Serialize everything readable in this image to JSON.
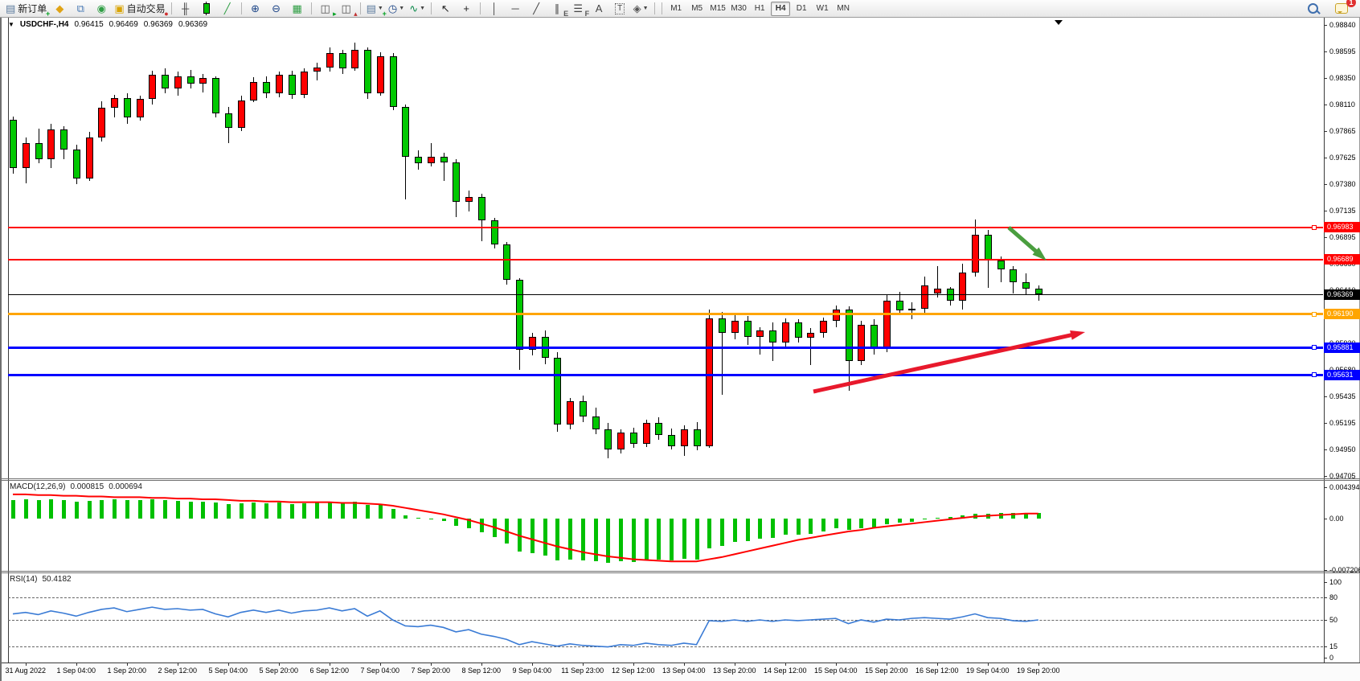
{
  "toolbar": {
    "new_order_label": "新订单",
    "auto_trading_label": "自动交易",
    "buttons": [
      {
        "name": "new-order-button",
        "base": "▤",
        "base_color": "#5b7a9d",
        "overlay": "+",
        "overlay_color": "#00a020",
        "label": "新订单"
      },
      {
        "name": "market-watch-button",
        "base": "◆",
        "base_color": "#e0a315"
      },
      {
        "name": "chart-window-button",
        "base": "⧉",
        "base_color": "#4a7ab5"
      },
      {
        "name": "signal-button",
        "base": "◉",
        "base_color": "#2f9e44"
      },
      {
        "name": "auto-trading-button",
        "base": "▣",
        "base_color": "#d9a406",
        "overlay": "●",
        "overlay_color": "#d03030",
        "label": "自动交易"
      },
      {
        "sep": true
      },
      {
        "name": "bar-chart-button",
        "base": "╫",
        "base_color": "#444444"
      },
      {
        "name": "candlestick-chart-button",
        "candle": true
      },
      {
        "name": "line-chart-button",
        "base": "╱",
        "base_color": "#2f9e44"
      },
      {
        "sep": true
      },
      {
        "name": "zoom-in-button",
        "base": "⊕",
        "base_color": "#1c4587"
      },
      {
        "name": "zoom-out-button",
        "base": "⊖",
        "base_color": "#1c4587"
      },
      {
        "name": "tile-windows-button",
        "base": "▦",
        "base_color": "#2f9e44"
      },
      {
        "sep": true
      },
      {
        "name": "indicators-button",
        "base": "◫",
        "base_color": "#555555",
        "overlay": "▸",
        "overlay_color": "#00a020"
      },
      {
        "name": "indicator-window-button",
        "base": "◫",
        "base_color": "#555555",
        "overlay": "▴",
        "overlay_color": "#c03030"
      },
      {
        "sep": true
      },
      {
        "name": "add-indicator-button",
        "base": "▤",
        "base_color": "#5b7a9d",
        "overlay": "+",
        "overlay_color": "#00a020",
        "dropdown": true
      },
      {
        "name": "periods-button",
        "base": "◷",
        "base_color": "#1c4587",
        "dropdown": true
      },
      {
        "name": "template-button",
        "base": "∿",
        "base_color": "#0a8a4a",
        "dropdown": true
      },
      {
        "sep": true
      },
      {
        "name": "cursor-button",
        "base": "↖",
        "base_color": "#222222"
      },
      {
        "name": "crosshair-button",
        "base": "+",
        "base_color": "#222222"
      },
      {
        "sep": true
      },
      {
        "name": "vertical-line-button",
        "base": "│",
        "base_color": "#444444"
      },
      {
        "name": "horizontal-line-button",
        "base": "─",
        "base_color": "#444444"
      },
      {
        "name": "trendline-button",
        "base": "╱",
        "base_color": "#444444"
      },
      {
        "name": "channel-button",
        "base": "∥",
        "base_color": "#444444",
        "overlay": "E",
        "overlay_color": "#555555"
      },
      {
        "name": "fibonacci-button",
        "base": "☰",
        "base_color": "#444444",
        "overlay": "F",
        "overlay_color": "#555555"
      },
      {
        "name": "text-button",
        "base": "A",
        "base_color": "#444444"
      },
      {
        "name": "label-button",
        "base": "T",
        "base_color": "#444444",
        "boxed": true
      },
      {
        "name": "arrows-button",
        "base": "◈",
        "base_color": "#555555",
        "dropdown": true
      },
      {
        "sep": true
      }
    ],
    "timeframes": [
      "M1",
      "M5",
      "M15",
      "M30",
      "H1",
      "H4",
      "D1",
      "W1",
      "MN"
    ],
    "active_timeframe": "H4",
    "notification_badge": "1"
  },
  "chart_header": {
    "symbol": "USDCHF-,H4",
    "open": "0.96415",
    "high": "0.96469",
    "low": "0.96369",
    "close": "0.96369"
  },
  "indicators": {
    "macd": {
      "label": "MACD(12,26,9)",
      "value_main": "0.000815",
      "value_signal": "0.000694"
    },
    "rsi": {
      "label": "RSI(14)",
      "value": "50.4182"
    }
  },
  "chart_data": {
    "type": "candlestick",
    "symbol": "USDCHF",
    "timeframe": "H4",
    "style": {
      "up_color": "#ff0000",
      "down_color": "#00c800",
      "wick_color": "#000000",
      "macd_hist_color": "#00c000",
      "macd_signal_color": "#ff0000",
      "rsi_color": "#3a7bd5",
      "line_red": "#ff0000",
      "line_orange": "#ffa500",
      "line_blue": "#0000ff",
      "bid_line": "#000000"
    },
    "price_axis": {
      "ticks": [
        0.9884,
        0.98595,
        0.9835,
        0.9811,
        0.97865,
        0.97625,
        0.9738,
        0.97135,
        0.96895,
        0.9665,
        0.9641,
        0.96165,
        0.9592,
        0.9568,
        0.95435,
        0.95195,
        0.9495,
        0.94705
      ],
      "boxed_labels": [
        {
          "label": "0.96983",
          "price": 0.96983,
          "color": "#ff0000"
        },
        {
          "label": "0.96689",
          "price": 0.96689,
          "color": "#ff0000"
        },
        {
          "label": "0.96369",
          "price": 0.96369,
          "color": "#000000"
        },
        {
          "label": "0.96190",
          "price": 0.9619,
          "color": "#ffa500"
        },
        {
          "label": "0.95881",
          "price": 0.95881,
          "color": "#0000ff"
        },
        {
          "label": "0.95631",
          "price": 0.95631,
          "color": "#0000ff"
        }
      ]
    },
    "time_labels": [
      "31 Aug 2022",
      "1 Sep 04:00",
      "1 Sep 20:00",
      "2 Sep 12:00",
      "5 Sep 04:00",
      "5 Sep 20:00",
      "6 Sep 12:00",
      "7 Sep 04:00",
      "7 Sep 20:00",
      "8 Sep 12:00",
      "9 Sep 04:00",
      "11 Sep 23:00",
      "12 Sep 12:00",
      "13 Sep 04:00",
      "13 Sep 20:00",
      "14 Sep 12:00",
      "15 Sep 04:00",
      "15 Sep 20:00",
      "16 Sep 12:00",
      "19 Sep 04:00",
      "19 Sep 20:00"
    ],
    "horizontal_lines": [
      {
        "name": "resistance-line-1",
        "price": 0.96983,
        "color": "#ff0000",
        "width": 2,
        "handle": true
      },
      {
        "name": "resistance-line-2",
        "price": 0.96689,
        "color": "#ff0000",
        "width": 2,
        "handle": false
      },
      {
        "name": "bid-price-line",
        "price": 0.96369,
        "color": "#000000",
        "width": 1,
        "handle": false
      },
      {
        "name": "pivot-line-orange",
        "price": 0.9619,
        "color": "#ffa500",
        "width": 3,
        "handle": true
      },
      {
        "name": "support-line-1",
        "price": 0.95881,
        "color": "#0000ff",
        "width": 3,
        "handle": true
      },
      {
        "name": "support-line-2",
        "price": 0.95631,
        "color": "#0000ff",
        "width": 3,
        "handle": true
      }
    ],
    "arrows": [
      {
        "name": "green-down-arrow",
        "from": [
          1253,
          283
        ],
        "to": [
          1300,
          324
        ],
        "color": "#4a9e3f",
        "width": 5
      },
      {
        "name": "red-up-trend-arrow",
        "from": [
          1010,
          487
        ],
        "to": [
          1348,
          413
        ],
        "color": "#e8192c",
        "width": 5
      }
    ],
    "candles": [
      [
        0.9797,
        0.98,
        0.9748,
        0.9753
      ],
      [
        0.9753,
        0.9781,
        0.9739,
        0.9776
      ],
      [
        0.9776,
        0.9789,
        0.9757,
        0.9761
      ],
      [
        0.9761,
        0.9793,
        0.9753,
        0.9788
      ],
      [
        0.9788,
        0.9791,
        0.9761,
        0.977
      ],
      [
        0.977,
        0.9774,
        0.9738,
        0.9743
      ],
      [
        0.9743,
        0.9786,
        0.9741,
        0.9781
      ],
      [
        0.9781,
        0.9814,
        0.9777,
        0.9808
      ],
      [
        0.9808,
        0.982,
        0.9799,
        0.9817
      ],
      [
        0.9817,
        0.9821,
        0.9793,
        0.9799
      ],
      [
        0.9799,
        0.9819,
        0.9796,
        0.9816
      ],
      [
        0.9816,
        0.9842,
        0.9811,
        0.9838
      ],
      [
        0.9838,
        0.9844,
        0.9821,
        0.9826
      ],
      [
        0.9826,
        0.9841,
        0.9819,
        0.9837
      ],
      [
        0.9837,
        0.9843,
        0.9826,
        0.983
      ],
      [
        0.983,
        0.9839,
        0.9822,
        0.9835
      ],
      [
        0.9835,
        0.9837,
        0.9799,
        0.9803
      ],
      [
        0.9803,
        0.9809,
        0.9776,
        0.979
      ],
      [
        0.979,
        0.9819,
        0.9787,
        0.9815
      ],
      [
        0.9815,
        0.9836,
        0.9813,
        0.9832
      ],
      [
        0.9832,
        0.9837,
        0.9817,
        0.9821
      ],
      [
        0.9821,
        0.9841,
        0.9818,
        0.9838
      ],
      [
        0.9838,
        0.9842,
        0.9816,
        0.982
      ],
      [
        0.982,
        0.9844,
        0.9817,
        0.9841
      ],
      [
        0.9841,
        0.9849,
        0.9833,
        0.9845
      ],
      [
        0.9845,
        0.9863,
        0.9841,
        0.9858
      ],
      [
        0.9858,
        0.9861,
        0.9839,
        0.9844
      ],
      [
        0.9844,
        0.9868,
        0.9842,
        0.9861
      ],
      [
        0.9861,
        0.9863,
        0.9816,
        0.9821
      ],
      [
        0.9821,
        0.9859,
        0.9819,
        0.9855
      ],
      [
        0.9855,
        0.9858,
        0.9806,
        0.9809
      ],
      [
        0.9809,
        0.9811,
        0.9724,
        0.9763
      ],
      [
        0.9763,
        0.9769,
        0.9751,
        0.9757
      ],
      [
        0.9757,
        0.9776,
        0.9754,
        0.9763
      ],
      [
        0.9763,
        0.9767,
        0.9741,
        0.9758
      ],
      [
        0.9758,
        0.9761,
        0.9708,
        0.9722
      ],
      [
        0.9722,
        0.9732,
        0.9713,
        0.9726
      ],
      [
        0.9726,
        0.9729,
        0.9686,
        0.9705
      ],
      [
        0.9705,
        0.9707,
        0.9679,
        0.9683
      ],
      [
        0.9683,
        0.9685,
        0.9646,
        0.965
      ],
      [
        0.965,
        0.9652,
        0.9568,
        0.9586
      ],
      [
        0.9586,
        0.9602,
        0.9581,
        0.9598
      ],
      [
        0.9598,
        0.9604,
        0.9573,
        0.9579
      ],
      [
        0.9579,
        0.9584,
        0.9511,
        0.9518
      ],
      [
        0.9518,
        0.9542,
        0.9513,
        0.9539
      ],
      [
        0.9539,
        0.9544,
        0.952,
        0.9525
      ],
      [
        0.9525,
        0.9533,
        0.9509,
        0.9513
      ],
      [
        0.9513,
        0.9519,
        0.9487,
        0.9495
      ],
      [
        0.9495,
        0.9513,
        0.9491,
        0.951
      ],
      [
        0.951,
        0.9515,
        0.9496,
        0.95
      ],
      [
        0.95,
        0.9522,
        0.9497,
        0.9519
      ],
      [
        0.9519,
        0.9524,
        0.9504,
        0.9508
      ],
      [
        0.9508,
        0.9514,
        0.9495,
        0.9498
      ],
      [
        0.9498,
        0.9517,
        0.9489,
        0.9513
      ],
      [
        0.9513,
        0.952,
        0.9494,
        0.9498
      ],
      [
        0.9498,
        0.9623,
        0.9496,
        0.9615
      ],
      [
        0.9615,
        0.9621,
        0.9545,
        0.9602
      ],
      [
        0.9602,
        0.9618,
        0.9596,
        0.9613
      ],
      [
        0.9613,
        0.9617,
        0.9591,
        0.9598
      ],
      [
        0.9598,
        0.9607,
        0.9582,
        0.9604
      ],
      [
        0.9604,
        0.9611,
        0.9576,
        0.9593
      ],
      [
        0.9593,
        0.9615,
        0.9589,
        0.9611
      ],
      [
        0.9611,
        0.9614,
        0.9593,
        0.9597
      ],
      [
        0.9597,
        0.9606,
        0.9572,
        0.9602
      ],
      [
        0.9602,
        0.9616,
        0.9597,
        0.9613
      ],
      [
        0.9613,
        0.9627,
        0.9607,
        0.9623
      ],
      [
        0.9623,
        0.9626,
        0.9549,
        0.9576
      ],
      [
        0.9576,
        0.9613,
        0.9572,
        0.9609
      ],
      [
        0.9609,
        0.9614,
        0.9582,
        0.9587
      ],
      [
        0.9587,
        0.9636,
        0.9584,
        0.9631
      ],
      [
        0.9631,
        0.9639,
        0.9618,
        0.9622
      ],
      [
        0.9622,
        0.963,
        0.9614,
        0.9624
      ],
      [
        0.9624,
        0.9653,
        0.9619,
        0.9645
      ],
      [
        0.9638,
        0.9663,
        0.9634,
        0.9642
      ],
      [
        0.9642,
        0.9644,
        0.9627,
        0.9631
      ],
      [
        0.9631,
        0.9665,
        0.9623,
        0.9657
      ],
      [
        0.9657,
        0.9706,
        0.9653,
        0.9692
      ],
      [
        0.9692,
        0.9696,
        0.9643,
        0.9668
      ],
      [
        0.9668,
        0.9672,
        0.9648,
        0.966
      ],
      [
        0.966,
        0.9663,
        0.9638,
        0.9648
      ],
      [
        0.9648,
        0.9656,
        0.9636,
        0.9642
      ],
      [
        0.9642,
        0.9645,
        0.9631,
        0.9637
      ]
    ],
    "macd": {
      "axis_labels": [
        {
          "value": 0.004394,
          "label": "0.004394"
        },
        {
          "value": 0,
          "label": "0.00"
        },
        {
          "value": -0.007206,
          "label": "-0.007206"
        }
      ],
      "histogram": [
        0.0026,
        0.0027,
        0.0026,
        0.0027,
        0.0026,
        0.0024,
        0.0025,
        0.0026,
        0.0027,
        0.0026,
        0.0026,
        0.0027,
        0.0026,
        0.0025,
        0.0024,
        0.0024,
        0.0022,
        0.002,
        0.0021,
        0.0022,
        0.0021,
        0.0022,
        0.002,
        0.0021,
        0.0022,
        0.0024,
        0.0023,
        0.0024,
        0.0019,
        0.002,
        0.0013,
        0.0005,
        0.0001,
        0.0,
        -0.0003,
        -0.001,
        -0.0013,
        -0.0019,
        -0.0026,
        -0.0035,
        -0.0046,
        -0.0048,
        -0.0052,
        -0.0059,
        -0.0058,
        -0.0059,
        -0.006,
        -0.0062,
        -0.006,
        -0.0061,
        -0.0058,
        -0.0058,
        -0.0059,
        -0.0056,
        -0.0057,
        -0.0042,
        -0.0038,
        -0.0033,
        -0.0031,
        -0.0028,
        -0.0027,
        -0.0023,
        -0.0022,
        -0.0021,
        -0.0018,
        -0.0014,
        -0.0016,
        -0.0013,
        -0.0012,
        -0.0008,
        -0.0006,
        -0.0004,
        -0.0001,
        0.0001,
        0.0002,
        0.0004,
        0.0007,
        0.0007,
        0.0008,
        0.0008,
        0.0008,
        0.0008
      ],
      "signal": [
        0.0034,
        0.0034,
        0.0033,
        0.0033,
        0.0032,
        0.0032,
        0.0031,
        0.0031,
        0.003,
        0.003,
        0.003,
        0.0029,
        0.0029,
        0.0028,
        0.0028,
        0.0027,
        0.0027,
        0.0026,
        0.0025,
        0.0025,
        0.0024,
        0.0024,
        0.0023,
        0.0023,
        0.0023,
        0.0023,
        0.0022,
        0.0022,
        0.0021,
        0.002,
        0.0018,
        0.0015,
        0.0012,
        0.0009,
        0.0006,
        0.0002,
        -0.0002,
        -0.0007,
        -0.0012,
        -0.0018,
        -0.0024,
        -0.0029,
        -0.0034,
        -0.0039,
        -0.0043,
        -0.0047,
        -0.005,
        -0.0053,
        -0.0055,
        -0.0057,
        -0.0058,
        -0.0059,
        -0.006,
        -0.006,
        -0.006,
        -0.0057,
        -0.0054,
        -0.005,
        -0.0046,
        -0.0042,
        -0.0038,
        -0.0034,
        -0.003,
        -0.0027,
        -0.0024,
        -0.0021,
        -0.0018,
        -0.0016,
        -0.0013,
        -0.0011,
        -0.0009,
        -0.0007,
        -0.0005,
        -0.0003,
        -0.0001,
        0.0001,
        0.0003,
        0.0004,
        0.0005,
        0.0006,
        0.0007,
        0.0007
      ]
    },
    "rsi": {
      "levels": [
        {
          "value": 100,
          "label": "100",
          "dashed": false
        },
        {
          "value": 80,
          "label": "80",
          "dashed": true
        },
        {
          "value": 50,
          "label": "50",
          "dashed": true
        },
        {
          "value": 15,
          "label": "15",
          "dashed": true
        },
        {
          "value": 0,
          "label": "0",
          "dashed": false
        }
      ],
      "values": [
        58,
        60,
        57,
        62,
        59,
        55,
        60,
        64,
        66,
        61,
        64,
        67,
        64,
        65,
        63,
        64,
        58,
        54,
        60,
        63,
        60,
        63,
        59,
        62,
        63,
        66,
        62,
        65,
        55,
        62,
        50,
        42,
        41,
        43,
        40,
        34,
        37,
        31,
        28,
        24,
        17,
        21,
        18,
        15,
        18,
        16,
        15,
        14,
        17,
        16,
        19,
        17,
        16,
        19,
        17,
        49,
        48,
        50,
        48,
        50,
        48,
        50,
        49,
        50,
        51,
        52,
        45,
        50,
        47,
        51,
        50,
        52,
        53,
        52,
        51,
        54,
        58,
        53,
        52,
        49,
        48,
        50
      ]
    }
  }
}
